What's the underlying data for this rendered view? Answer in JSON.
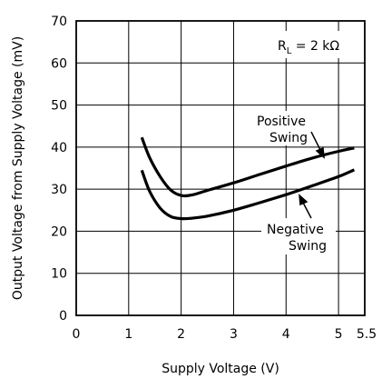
{
  "chart_data": {
    "type": "line",
    "xlabel": "Supply Voltage (V)",
    "ylabel": "Output Voltage from Supply Voltage (mV)",
    "xlim": [
      0,
      5.5
    ],
    "ylim": [
      0,
      70
    ],
    "x_ticks": [
      0,
      1,
      2,
      3,
      4,
      5,
      5.5
    ],
    "x_tick_labels": [
      "0",
      "1",
      "2",
      "3",
      "4",
      "5",
      "5.5"
    ],
    "y_ticks": [
      0,
      10,
      20,
      30,
      40,
      50,
      60,
      70
    ],
    "y_tick_labels": [
      "0",
      "10",
      "20",
      "30",
      "40",
      "50",
      "60",
      "70"
    ],
    "grid": true,
    "series": [
      {
        "name": "Positive Swing",
        "x": [
          1.25,
          1.4,
          1.6,
          1.8,
          2.0,
          2.2,
          2.5,
          3.0,
          3.5,
          4.0,
          4.5,
          5.0,
          5.3
        ],
        "y": [
          42.3,
          37.5,
          33.0,
          29.8,
          28.5,
          28.6,
          29.7,
          31.5,
          33.5,
          35.5,
          37.4,
          39.0,
          39.8
        ]
      },
      {
        "name": "Negative Swing",
        "x": [
          1.25,
          1.4,
          1.6,
          1.8,
          2.0,
          2.2,
          2.5,
          3.0,
          3.5,
          4.0,
          4.5,
          5.0,
          5.3
        ],
        "y": [
          34.5,
          29.5,
          25.5,
          23.5,
          23.0,
          23.1,
          23.6,
          25.0,
          26.8,
          28.7,
          30.8,
          33.0,
          34.6
        ]
      }
    ],
    "annotations": {
      "load": {
        "prefix": "R",
        "subscript": "L",
        "suffix": " = 2 kΩ"
      },
      "positive": [
        "Positive",
        "Swing"
      ],
      "negative": [
        "Negative",
        "Swing"
      ]
    }
  }
}
